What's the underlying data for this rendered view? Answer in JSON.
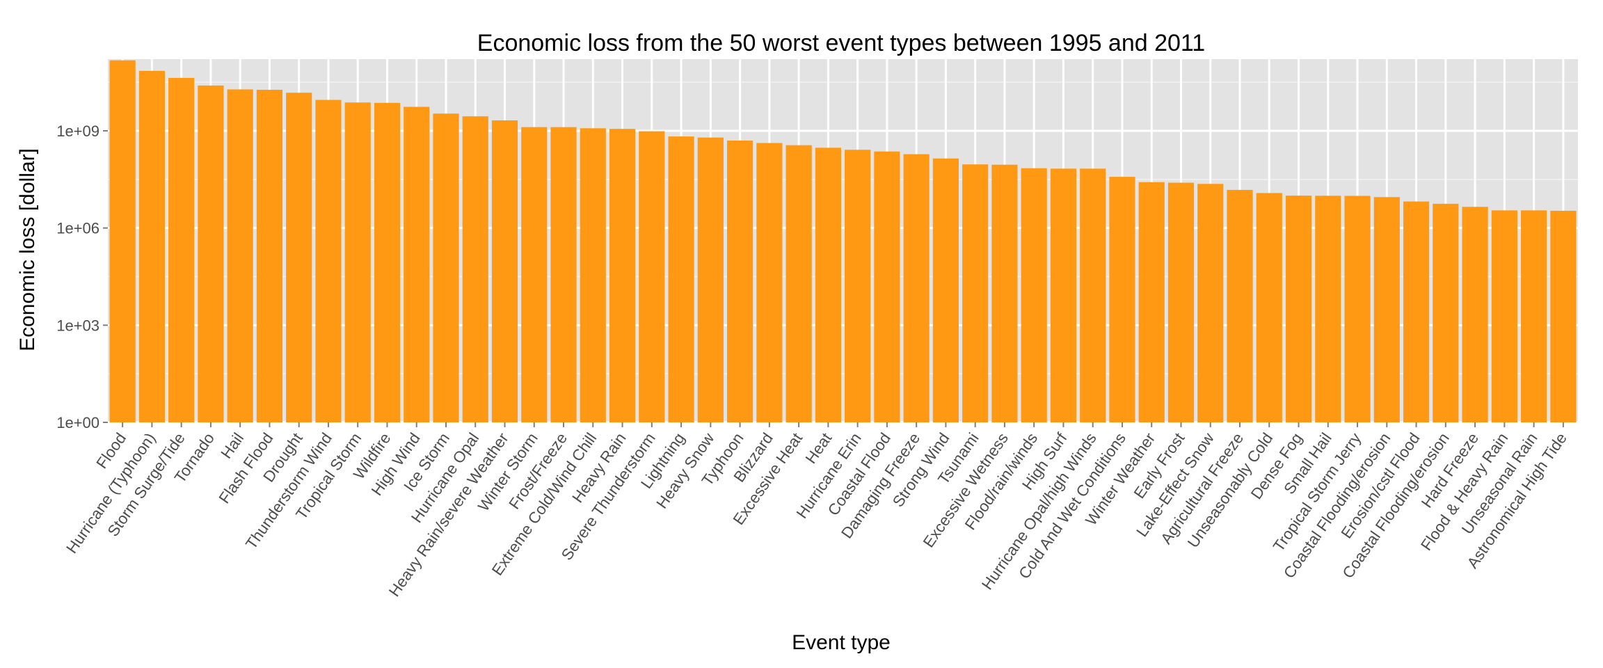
{
  "chart_data": {
    "type": "bar",
    "title": "Economic loss from the 50 worst event types between 1995 and 2011",
    "xlabel": "Event type",
    "ylabel": "Economic loss [dollar]",
    "y_scale": "log10",
    "ylim": [
      1,
      150000000000
    ],
    "y_ticks": [
      {
        "value": 1,
        "label": "1e+00"
      },
      {
        "value": 1000,
        "label": "1e+03"
      },
      {
        "value": 1000000,
        "label": "1e+06"
      },
      {
        "value": 1000000000,
        "label": "1e+09"
      }
    ],
    "grid": true,
    "bar_color": "#ff9914",
    "panel_color": "#e3e3e3",
    "categories": [
      "Flood",
      "Hurricane (Typhoon)",
      "Storm Surge/Tide",
      "Tornado",
      "Hail",
      "Flash Flood",
      "Drought",
      "Thunderstorm Wind",
      "Tropical Storm",
      "Wildfire",
      "High Wind",
      "Ice Storm",
      "Hurricane Opal",
      "Heavy Rain/severe Weather",
      "Winter Storm",
      "Frost/Freeze",
      "Extreme Cold/Wind Chill",
      "Heavy Rain",
      "Severe Thunderstorm",
      "Lightning",
      "Heavy Snow",
      "Typhoon",
      "Blizzard",
      "Excessive Heat",
      "Heat",
      "Hurricane Erin",
      "Coastal Flood",
      "Damaging Freeze",
      "Strong Wind",
      "Tsunami",
      "Excessive Wetness",
      "Flood/rain/winds",
      "High Surf",
      "Hurricane Opal/high Winds",
      "Cold And Wet Conditions",
      "Winter Weather",
      "Early Frost",
      "Lake-Effect Snow",
      "Agricultural Freeze",
      "Unseasonably Cold",
      "Dense Fog",
      "Small Hail",
      "Tropical Storm Jerry",
      "Coastal Flooding/erosion",
      "Erosion/cstl Flood",
      "Coastal  Flooding/erosion",
      "Hard Freeze",
      "Flood & Heavy Rain",
      "Unseasonal Rain",
      "Astronomical High Tide"
    ],
    "values": [
      150000000000,
      71000000000,
      43000000000,
      25000000000,
      19000000000,
      18500000000,
      15000000000,
      9000000000,
      7500000000,
      7300000000,
      5500000000,
      3400000000,
      2800000000,
      2100000000,
      1300000000,
      1300000000,
      1200000000,
      1150000000,
      970000000,
      670000000,
      620000000,
      500000000,
      420000000,
      360000000,
      300000000,
      260000000,
      230000000,
      190000000,
      140000000,
      92000000,
      90000000,
      70000000,
      68000000,
      68000000,
      38000000,
      26000000,
      25000000,
      23000000,
      15000000,
      12000000,
      10000000,
      9900000,
      9800000,
      9000000,
      6600000,
      5600000,
      4500000,
      3500000,
      3500000,
      3400000
    ]
  }
}
